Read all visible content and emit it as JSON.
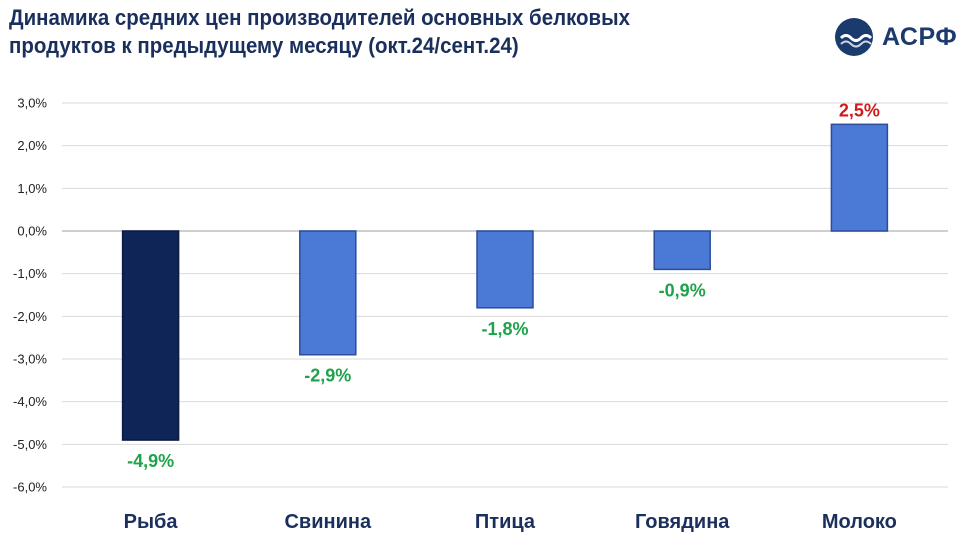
{
  "title": "Динамика средних цен производителей основных белковых продуктов к предыдущему месяцу (окт.24/сент.24)",
  "logo": {
    "text": "АСРФ",
    "icon": "wave-circle-icon"
  },
  "colors": {
    "title": "#1b2f5c",
    "bar_highlight": "#0f2457",
    "bar_default": "#4a79d6",
    "bar_border": "#2b4d9a",
    "positive_label": "#d11b1b",
    "negative_label": "#1fa34a",
    "grid": "#d9d9d9"
  },
  "chart_data": {
    "type": "bar",
    "title": "Динамика средних цен производителей основных белковых продуктов к предыдущему месяцу (окт.24/сент.24)",
    "categories": [
      "Рыба",
      "Свинина",
      "Птица",
      "Говядина",
      "Молоко"
    ],
    "values": [
      -4.9,
      -2.9,
      -1.8,
      -0.9,
      2.5
    ],
    "data_labels": [
      "-4,9%",
      "-2,9%",
      "-1,8%",
      "-0,9%",
      "2,5%"
    ],
    "highlight_index": 0,
    "ylim": [
      -6,
      3
    ],
    "yticks": [
      3,
      2,
      1,
      0,
      -1,
      -2,
      -3,
      -4,
      -5,
      -6
    ],
    "ytick_labels": [
      "3,0%",
      "2,0%",
      "1,0%",
      "0,0%",
      "-1,0%",
      "-2,0%",
      "-3,0%",
      "-4,0%",
      "-5,0%",
      "-6,0%"
    ],
    "grid": true,
    "xlabel": "",
    "ylabel": ""
  }
}
